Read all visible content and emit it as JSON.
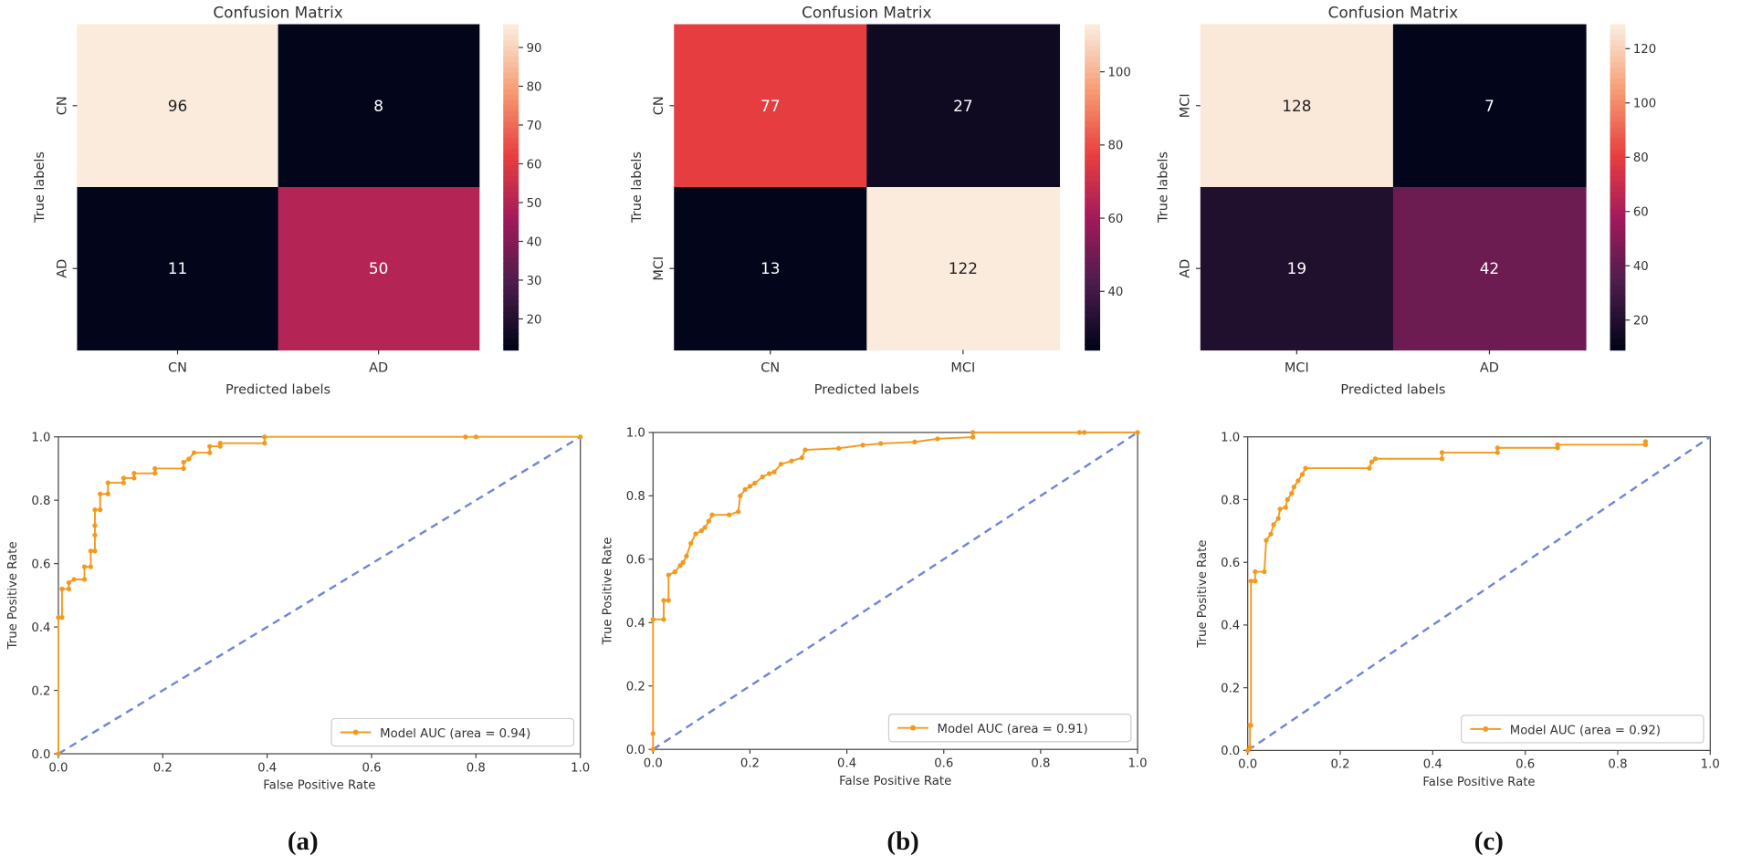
{
  "panels": [
    "(a)",
    "(b)",
    "(c)"
  ],
  "chart_data": [
    {
      "type": "heatmap",
      "title": "Confusion Matrix",
      "xlabel": "Predicted labels",
      "ylabel": "True labels",
      "x_categories": [
        "CN",
        "AD"
      ],
      "y_categories": [
        "CN",
        "AD"
      ],
      "values": [
        [
          96,
          8
        ],
        [
          11,
          50
        ]
      ],
      "colorbar": {
        "range": [
          12,
          96
        ],
        "ticks": [
          20,
          30,
          40,
          50,
          60,
          70,
          80,
          90
        ]
      }
    },
    {
      "type": "line",
      "xlabel": "False Positive Rate",
      "ylabel": "True Positive Rate",
      "xlim": [
        0,
        1
      ],
      "ylim": [
        0,
        1
      ],
      "ticks": [
        "0.0",
        "0.2",
        "0.4",
        "0.6",
        "0.8",
        "1.0"
      ],
      "legend": {
        "label": "Model AUC (area = 0.94)",
        "placement": "lower-right"
      },
      "colors": {
        "model": "#f39a1e",
        "chance": "#6f86d6"
      },
      "series": [
        {
          "name": "Model AUC (area = 0.94)",
          "points": [
            [
              0,
              0
            ],
            [
              0,
              0.43
            ],
            [
              0.007,
              0.43
            ],
            [
              0.007,
              0.52
            ],
            [
              0.02,
              0.52
            ],
            [
              0.02,
              0.54
            ],
            [
              0.03,
              0.55
            ],
            [
              0.05,
              0.55
            ],
            [
              0.05,
              0.59
            ],
            [
              0.062,
              0.59
            ],
            [
              0.062,
              0.64
            ],
            [
              0.07,
              0.64
            ],
            [
              0.07,
              0.69
            ],
            [
              0.07,
              0.72
            ],
            [
              0.07,
              0.77
            ],
            [
              0.08,
              0.77
            ],
            [
              0.08,
              0.82
            ],
            [
              0.095,
              0.82
            ],
            [
              0.095,
              0.855
            ],
            [
              0.125,
              0.855
            ],
            [
              0.125,
              0.87
            ],
            [
              0.145,
              0.87
            ],
            [
              0.145,
              0.885
            ],
            [
              0.185,
              0.885
            ],
            [
              0.185,
              0.9
            ],
            [
              0.24,
              0.9
            ],
            [
              0.24,
              0.92
            ],
            [
              0.25,
              0.93
            ],
            [
              0.26,
              0.95
            ],
            [
              0.29,
              0.95
            ],
            [
              0.29,
              0.97
            ],
            [
              0.31,
              0.97
            ],
            [
              0.31,
              0.98
            ],
            [
              0.395,
              0.98
            ],
            [
              0.395,
              1.0
            ],
            [
              0.78,
              1.0
            ],
            [
              0.8,
              1.0
            ],
            [
              1,
              1
            ]
          ]
        },
        {
          "name": "chance",
          "points": [
            [
              0,
              0
            ],
            [
              1,
              1
            ]
          ]
        }
      ]
    },
    {
      "type": "heatmap",
      "title": "Confusion Matrix",
      "xlabel": "Predicted labels",
      "ylabel": "True labels",
      "x_categories": [
        "CN",
        "MCI"
      ],
      "y_categories": [
        "CN",
        "MCI"
      ],
      "values": [
        [
          77,
          27
        ],
        [
          13,
          122
        ]
      ],
      "colorbar": {
        "range": [
          24,
          113
        ],
        "ticks": [
          40,
          60,
          80,
          100
        ]
      }
    },
    {
      "type": "line",
      "xlabel": "False Positive Rate",
      "ylabel": "True Positive Rate",
      "xlim": [
        0,
        1
      ],
      "ylim": [
        0,
        1
      ],
      "ticks": [
        "0.0",
        "0.2",
        "0.4",
        "0.6",
        "0.8",
        "1.0"
      ],
      "legend": {
        "label": "Model AUC (area = 0.91)",
        "placement": "lower-right"
      },
      "colors": {
        "model": "#f39a1e",
        "chance": "#6f86d6"
      },
      "series": [
        {
          "name": "Model AUC (area = 0.91)",
          "points": [
            [
              0,
              0
            ],
            [
              0,
              0.05
            ],
            [
              0,
              0.41
            ],
            [
              0.022,
              0.41
            ],
            [
              0.022,
              0.47
            ],
            [
              0.032,
              0.47
            ],
            [
              0.032,
              0.55
            ],
            [
              0.045,
              0.56
            ],
            [
              0.056,
              0.58
            ],
            [
              0.062,
              0.59
            ],
            [
              0.069,
              0.61
            ],
            [
              0.078,
              0.65
            ],
            [
              0.088,
              0.68
            ],
            [
              0.1,
              0.69
            ],
            [
              0.107,
              0.7
            ],
            [
              0.115,
              0.72
            ],
            [
              0.122,
              0.74
            ],
            [
              0.157,
              0.74
            ],
            [
              0.176,
              0.75
            ],
            [
              0.18,
              0.8
            ],
            [
              0.19,
              0.82
            ],
            [
              0.2,
              0.83
            ],
            [
              0.21,
              0.84
            ],
            [
              0.226,
              0.86
            ],
            [
              0.24,
              0.87
            ],
            [
              0.25,
              0.875
            ],
            [
              0.264,
              0.9
            ],
            [
              0.286,
              0.91
            ],
            [
              0.307,
              0.92
            ],
            [
              0.314,
              0.945
            ],
            [
              0.383,
              0.95
            ],
            [
              0.433,
              0.96
            ],
            [
              0.47,
              0.965
            ],
            [
              0.54,
              0.97
            ],
            [
              0.587,
              0.98
            ],
            [
              0.66,
              0.985
            ],
            [
              0.66,
              1.0
            ],
            [
              0.88,
              1.0
            ],
            [
              0.89,
              1.0
            ],
            [
              1,
              1
            ]
          ]
        },
        {
          "name": "chance",
          "points": [
            [
              0,
              0
            ],
            [
              1,
              1
            ]
          ]
        }
      ]
    },
    {
      "type": "heatmap",
      "title": "Confusion Matrix",
      "xlabel": "Predicted labels",
      "ylabel": "True labels",
      "x_categories": [
        "MCI",
        "AD"
      ],
      "y_categories": [
        "MCI",
        "AD"
      ],
      "values": [
        [
          128,
          7
        ],
        [
          19,
          42
        ]
      ],
      "colorbar": {
        "range": [
          9,
          129
        ],
        "ticks": [
          20,
          40,
          60,
          80,
          100,
          120
        ]
      }
    },
    {
      "type": "line",
      "xlabel": "False Positive Rate",
      "ylabel": "True Positive Rate",
      "xlim": [
        0,
        1
      ],
      "ylim": [
        0,
        1
      ],
      "ticks": [
        "0.0",
        "0.2",
        "0.4",
        "0.6",
        "0.8",
        "1.0"
      ],
      "legend": {
        "label": "Model AUC (area = 0.92)",
        "placement": "lower-right"
      },
      "colors": {
        "model": "#f39a1e",
        "chance": "#6f86d6"
      },
      "series": [
        {
          "name": "Model AUC (area = 0.92)",
          "points": [
            [
              0,
              0
            ],
            [
              0.005,
              0.01
            ],
            [
              0.005,
              0.08
            ],
            [
              0.007,
              0.08
            ],
            [
              0.007,
              0.54
            ],
            [
              0.016,
              0.54
            ],
            [
              0.016,
              0.57
            ],
            [
              0.036,
              0.57
            ],
            [
              0.04,
              0.67
            ],
            [
              0.05,
              0.69
            ],
            [
              0.056,
              0.72
            ],
            [
              0.066,
              0.74
            ],
            [
              0.07,
              0.77
            ],
            [
              0.082,
              0.775
            ],
            [
              0.086,
              0.8
            ],
            [
              0.095,
              0.82
            ],
            [
              0.1,
              0.84
            ],
            [
              0.109,
              0.86
            ],
            [
              0.118,
              0.88
            ],
            [
              0.125,
              0.9
            ],
            [
              0.263,
              0.9
            ],
            [
              0.268,
              0.92
            ],
            [
              0.276,
              0.93
            ],
            [
              0.42,
              0.93
            ],
            [
              0.42,
              0.95
            ],
            [
              0.54,
              0.95
            ],
            [
              0.54,
              0.965
            ],
            [
              0.67,
              0.965
            ],
            [
              0.67,
              0.975
            ],
            [
              0.86,
              0.975
            ],
            [
              0.86,
              0.985
            ]
          ]
        },
        {
          "name": "chance",
          "points": [
            [
              0,
              0
            ],
            [
              1,
              1
            ]
          ]
        }
      ]
    }
  ]
}
